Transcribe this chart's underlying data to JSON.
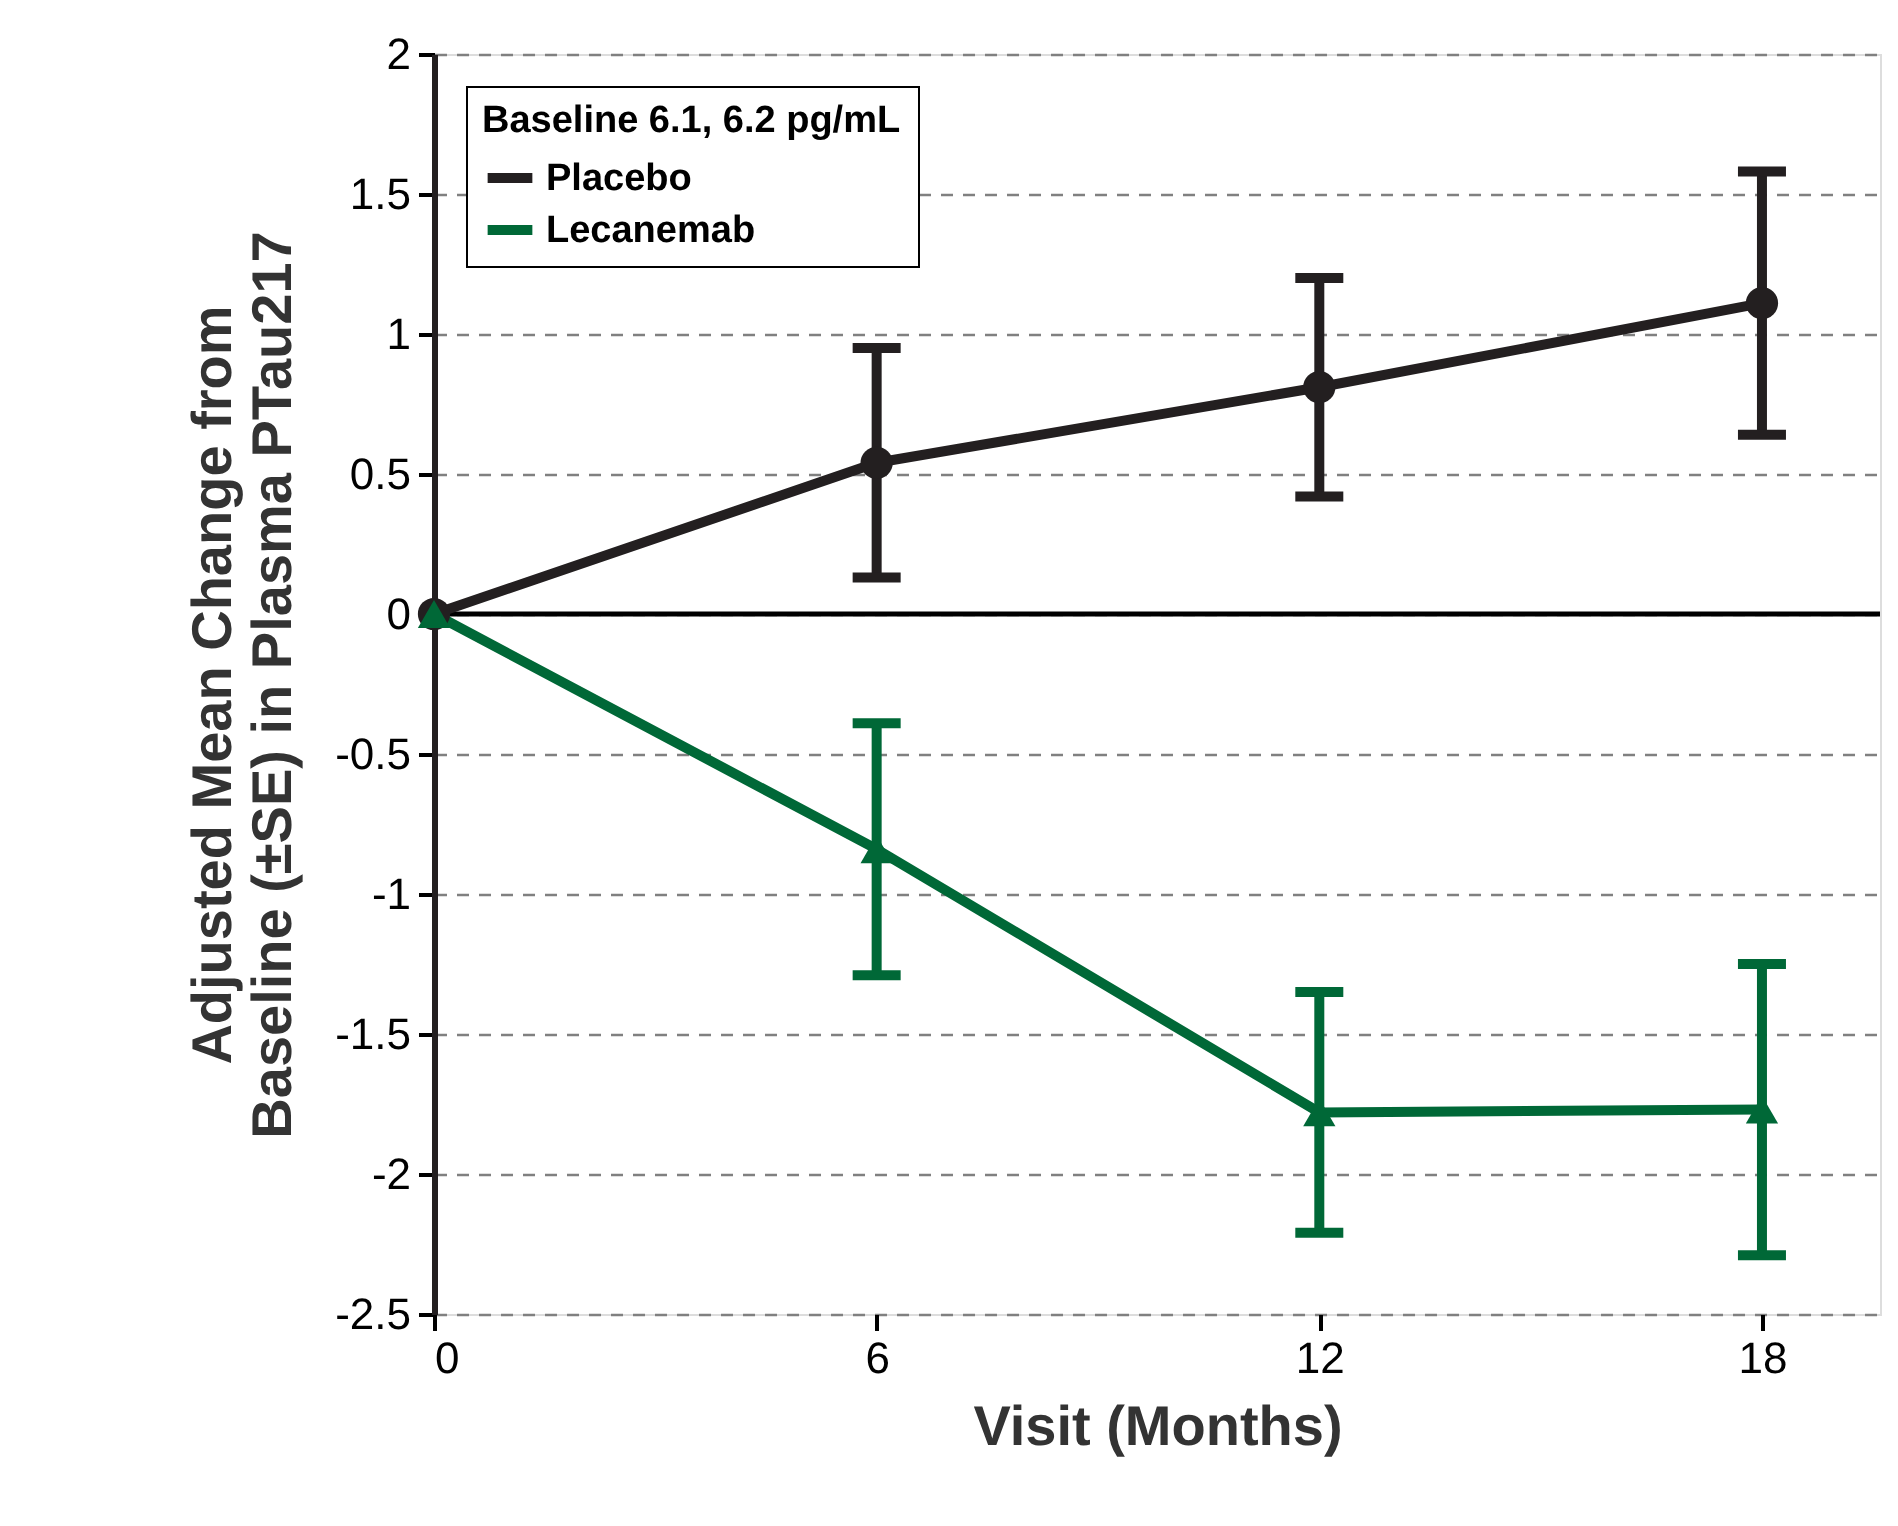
{
  "chart_data": {
    "type": "line",
    "xlabel": "Visit (Months)",
    "ylabel": "Adjusted Mean Change from\nBaseline (±SE) in Plasma PTau217",
    "legend_title": "Baseline 6.1, 6.2 pg/mL",
    "x": [
      0,
      6,
      12,
      18
    ],
    "xlim": [
      0,
      19.6
    ],
    "xticks": [
      0,
      6,
      12,
      18
    ],
    "ylim": [
      -2.5,
      2
    ],
    "yticks": [
      -2.5,
      -2,
      -1.5,
      -1,
      -0.5,
      0,
      0.5,
      1,
      1.5,
      2
    ],
    "grid": "y",
    "legend": "top left",
    "line_style": "solid",
    "ref_lines": [
      {
        "axis": "y",
        "value": 0,
        "color": "#000000",
        "line_style": "solid"
      }
    ],
    "series": [
      {
        "name": "Placebo",
        "color": "#231f20",
        "marker": "circle",
        "values": [
          0,
          0.54,
          0.81,
          1.11
        ],
        "errors": [
          null,
          0.41,
          0.39,
          0.47
        ]
      },
      {
        "name": "Lecanemab",
        "color": "#006837",
        "marker": "triangle",
        "values": [
          0,
          -0.84,
          -1.78,
          -1.77
        ],
        "errors": [
          null,
          0.45,
          0.43,
          0.52
        ]
      }
    ]
  }
}
